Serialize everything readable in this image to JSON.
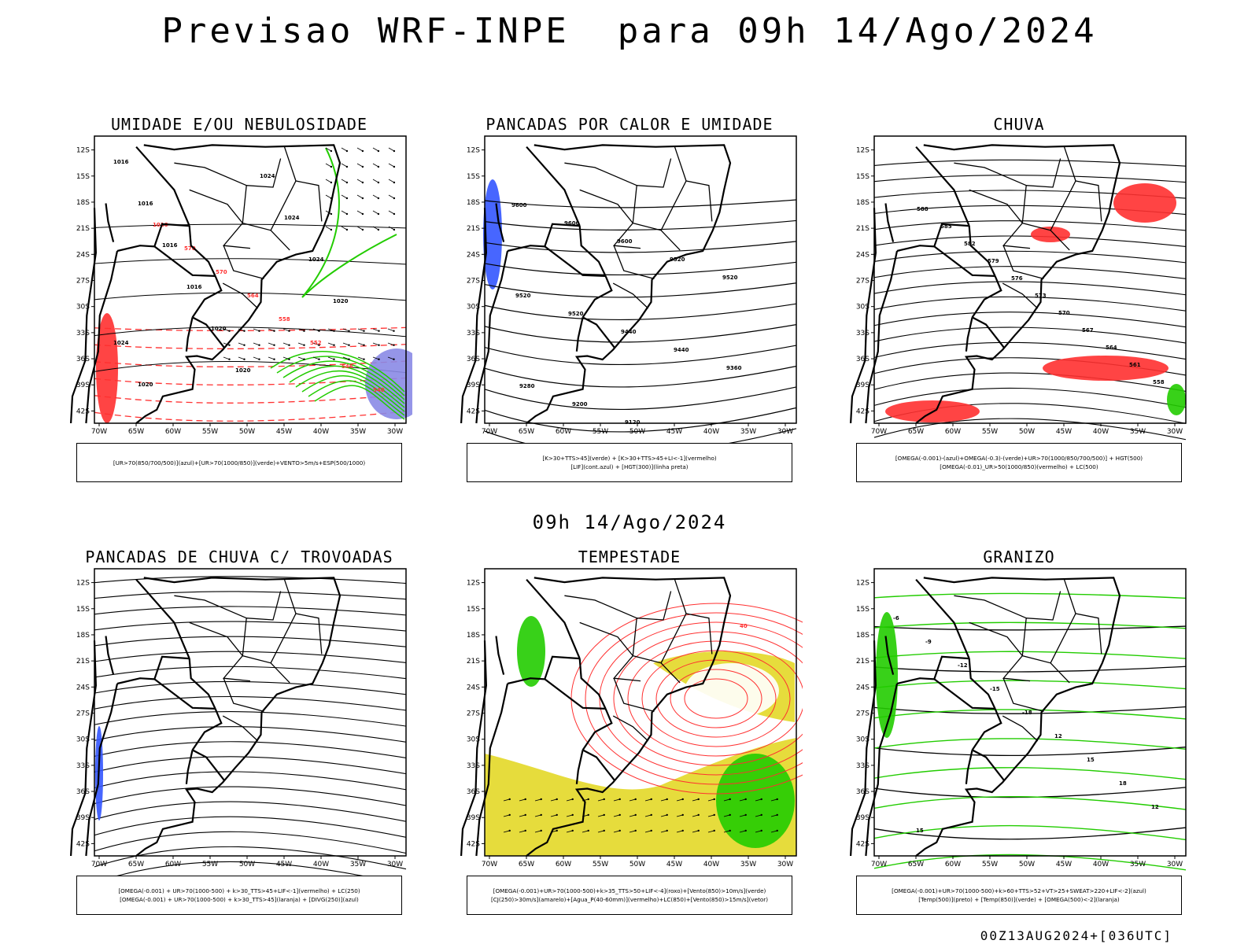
{
  "title": "Previsao WRF-INPE  para 09h 14/Ago/2024",
  "subtitle": "09h 14/Ago/2024",
  "footer": "00Z13AUG2024+[036UTC]",
  "axes": {
    "y_ticks": [
      "12S",
      "15S",
      "18S",
      "21S",
      "24S",
      "27S",
      "30S",
      "33S",
      "36S",
      "39S",
      "42S"
    ],
    "x_ticks": [
      "70W",
      "65W",
      "60W",
      "55W",
      "50W",
      "45W",
      "40W",
      "35W",
      "30W"
    ]
  },
  "panels": [
    {
      "title": "UMIDADE E/OU NEBULOSIDADE",
      "legend": [
        "[UR>70(850/700/500)](azul)+[UR>70(1000/850)](verde)+VENTO>5m/s+ESP(500/1000)"
      ],
      "contour_labels": [
        "1016",
        "1016",
        "1016",
        "1016",
        "1020",
        "1020",
        "1024",
        "1024",
        "1024",
        "1020",
        "1024",
        "1020",
        "1016",
        "570",
        "570",
        "564",
        "558",
        "552",
        "546",
        "540"
      ],
      "icon": "map-contour-icon"
    },
    {
      "title": "PANCADAS POR CALOR E UMIDADE",
      "legend": [
        "[K>30+TTS>45](verde) + [K>30+TTS>45+LI<-1](vermelho)",
        "[LIF](cont.azul) + [HGT(300)](linha preta)"
      ],
      "contour_labels": [
        "9600",
        "9600",
        "9600",
        "9520",
        "9520",
        "9520",
        "9520",
        "9440",
        "9440",
        "9360",
        "9280",
        "9200",
        "9120"
      ],
      "icon": "map-contour-icon"
    },
    {
      "title": "CHUVA",
      "legend": [
        "[OMEGA(-0.001)-(azul)+OMEGA(-0.3)-(verde)+UR>70(1000/850/700/500)] + HGT(500)",
        "[OMEGA(-0.01)_UR>50(1000/850)(vermelho) + LC(500)"
      ],
      "contour_labels": [
        "588",
        "585",
        "582",
        "579",
        "576",
        "573",
        "570",
        "567",
        "564",
        "561",
        "558"
      ],
      "icon": "map-streamline-icon"
    },
    {
      "title": "PANCADAS DE CHUVA C/ TROVOADAS",
      "legend": [
        "[OMEGA(-0.001) + UR>70(1000-500) + k>30_TTS>45+LIF<-1](vermelho) + LC(250)",
        "[OMEGA(-0.001) + UR>70(1000-500) + k>30_TTS>45](laranja) + [DIVG(250)](azul)"
      ],
      "contour_labels": [],
      "icon": "map-streamline-icon"
    },
    {
      "title": "TEMPESTADE",
      "legend": [
        "[OMEGA(-0.001)+UR>70(1000-500)+k>35_TTS>50+LIF<-4](roxo)+[Vento(850)>10m/s](verde)",
        "[CJ(250)>30m/s](amarelo)+[Agua_P(40-60mm)](vermelho)+LC(850)+[Vento(850)>15m/s](vetor)"
      ],
      "contour_labels": [
        "40"
      ],
      "icon": "map-streamline-icon"
    },
    {
      "title": "GRANIZO",
      "legend": [
        "[OMEGA(-0.001)+UR>70(1000-500)+k>60+TTS>52+VT>25+SWEAT>220+LIF<-2](azul)",
        "[Temp(500)](preto) + [Temp(850)](verde) + [OMEGA(500)<-2](laranja)"
      ],
      "contour_labels": [
        "-6",
        "-9",
        "-12",
        "-15",
        "-18",
        "12",
        "15",
        "18",
        "12",
        "15"
      ],
      "icon": "map-contour-icon"
    }
  ],
  "colors": {
    "coast": "#000000",
    "red": "#ff3030",
    "green": "#22cc00",
    "blue": "#3355ff",
    "yellow": "#e6dc3c",
    "purple": "#8a8ae6",
    "orange": "#ff8c3c"
  }
}
